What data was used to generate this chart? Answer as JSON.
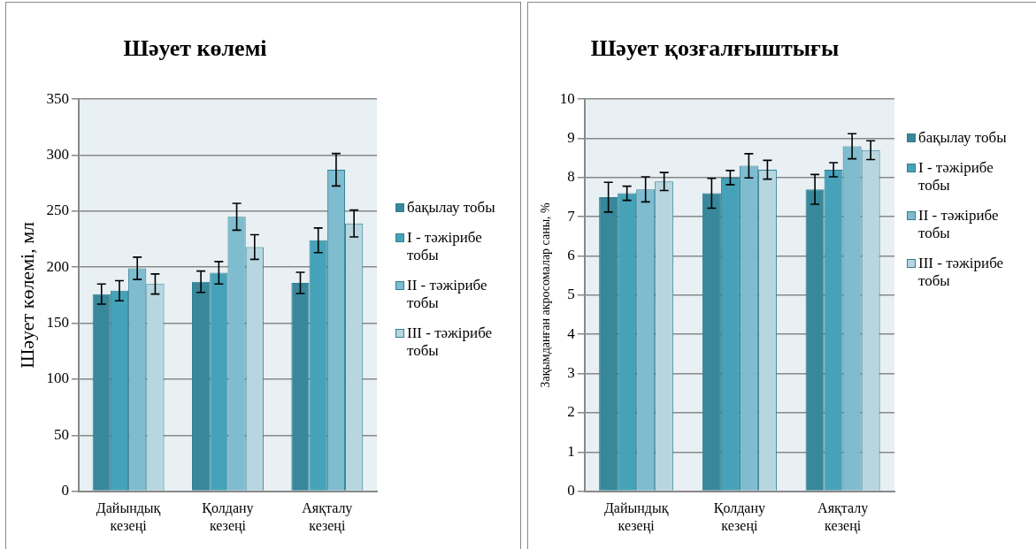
{
  "chart_data": [
    {
      "type": "bar",
      "title": "Шәует көлемі",
      "ylabel": "Шәует көлемі, мл",
      "categories": [
        "Дайындық кезеңі",
        "Қолдану кезеңі",
        "Аяқталу кезеңі"
      ],
      "series": [
        {
          "name": "бақылау тобы",
          "color": "#38879a",
          "values": [
            176,
            187,
            186
          ],
          "errors": [
            9,
            9.5,
            9.5
          ]
        },
        {
          "name": "I - тәжірибе тобы",
          "color": "#46a2b8",
          "values": [
            179,
            195,
            224
          ],
          "errors": [
            9,
            10,
            11
          ]
        },
        {
          "name": "II - тәжірибе тобы",
          "color": "#7fbcd0",
          "values": [
            199,
            245,
            287
          ],
          "errors": [
            10,
            12,
            14.5
          ]
        },
        {
          "name": "III - тәжірибе тобы",
          "color": "#b7d6e0",
          "values": [
            185,
            218,
            239
          ],
          "errors": [
            9,
            11,
            12
          ]
        }
      ],
      "ylim": [
        0,
        350
      ],
      "yticks": [
        0,
        50,
        100,
        150,
        200,
        250,
        300,
        350
      ],
      "grid": "y",
      "legend": "right"
    },
    {
      "type": "bar",
      "title": "Шәует қозғалғыштығы",
      "ylabel": "Зақымданған акросомалар саны, %",
      "categories": [
        "Дайындық кезеңі",
        "Қолдану кезеңі",
        "Аяқталу кезеңі"
      ],
      "series": [
        {
          "name": "бақылау тобы",
          "color": "#38879a",
          "values": [
            7.5,
            7.6,
            7.7
          ],
          "errors": [
            0.38,
            0.38,
            0.38
          ]
        },
        {
          "name": "I - тәжірибе тобы",
          "color": "#46a2b8",
          "values": [
            7.6,
            8.0,
            8.2
          ],
          "errors": [
            0.18,
            0.18,
            0.18
          ]
        },
        {
          "name": "II - тәжірибе тобы",
          "color": "#7fbcd0",
          "values": [
            7.7,
            8.3,
            8.8
          ],
          "errors": [
            0.32,
            0.31,
            0.32
          ]
        },
        {
          "name": "III - тәжірибе тобы",
          "color": "#b7d6e0",
          "values": [
            7.9,
            8.2,
            8.7
          ],
          "errors": [
            0.23,
            0.24,
            0.24
          ]
        }
      ],
      "ylim": [
        0,
        10
      ],
      "yticks": [
        0,
        1,
        2,
        3,
        4,
        5,
        6,
        7,
        8,
        9,
        10
      ],
      "grid": "y",
      "legend": "right"
    }
  ]
}
